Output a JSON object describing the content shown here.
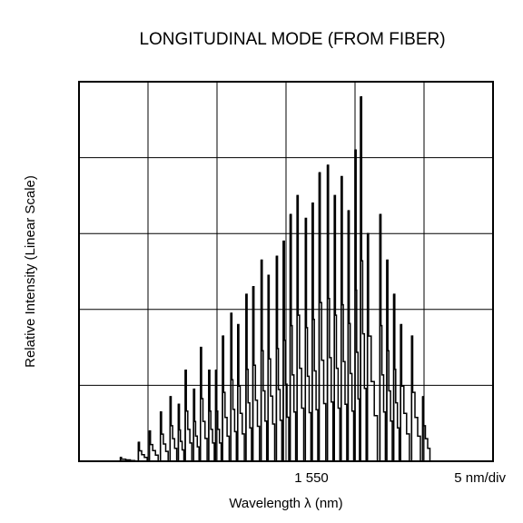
{
  "chart_data": {
    "type": "line",
    "title": "LONGITUDINAL MODE (FROM FIBER)",
    "xlabel": "Wavelength  λ (nm)",
    "ylabel": "Relative Intensity (Linear Scale)",
    "x_tick_label": "1 550",
    "x_tick_value": 1550,
    "scale_label": "5 nm/div",
    "x_per_div": 5,
    "xlim": [
      1532.5,
      1562.5
    ],
    "ylim": [
      0,
      1
    ],
    "grid": true,
    "x_divisions": 6,
    "y_divisions": 5,
    "peaks": [
      {
        "x": 1535.5,
        "y": 0.01
      },
      {
        "x": 1536.8,
        "y": 0.05
      },
      {
        "x": 1537.6,
        "y": 0.08
      },
      {
        "x": 1538.4,
        "y": 0.13
      },
      {
        "x": 1539.1,
        "y": 0.17
      },
      {
        "x": 1539.7,
        "y": 0.15
      },
      {
        "x": 1540.2,
        "y": 0.24
      },
      {
        "x": 1540.8,
        "y": 0.19
      },
      {
        "x": 1541.3,
        "y": 0.3
      },
      {
        "x": 1541.9,
        "y": 0.24
      },
      {
        "x": 1542.4,
        "y": 0.24
      },
      {
        "x": 1542.9,
        "y": 0.33
      },
      {
        "x": 1543.5,
        "y": 0.39
      },
      {
        "x": 1544.0,
        "y": 0.36
      },
      {
        "x": 1544.6,
        "y": 0.44
      },
      {
        "x": 1545.1,
        "y": 0.46
      },
      {
        "x": 1545.7,
        "y": 0.53
      },
      {
        "x": 1546.2,
        "y": 0.49
      },
      {
        "x": 1546.8,
        "y": 0.54
      },
      {
        "x": 1547.3,
        "y": 0.58
      },
      {
        "x": 1547.8,
        "y": 0.65
      },
      {
        "x": 1548.3,
        "y": 0.7
      },
      {
        "x": 1548.9,
        "y": 0.64
      },
      {
        "x": 1549.4,
        "y": 0.68
      },
      {
        "x": 1549.9,
        "y": 0.76
      },
      {
        "x": 1550.5,
        "y": 0.78
      },
      {
        "x": 1551.0,
        "y": 0.7
      },
      {
        "x": 1551.5,
        "y": 0.75
      },
      {
        "x": 1552.0,
        "y": 0.66
      },
      {
        "x": 1552.5,
        "y": 0.82
      },
      {
        "x": 1552.9,
        "y": 0.96
      },
      {
        "x": 1553.4,
        "y": 0.6
      },
      {
        "x": 1554.3,
        "y": 0.65
      },
      {
        "x": 1554.8,
        "y": 0.53
      },
      {
        "x": 1555.3,
        "y": 0.44
      },
      {
        "x": 1555.8,
        "y": 0.36
      },
      {
        "x": 1556.6,
        "y": 0.33
      },
      {
        "x": 1557.4,
        "y": 0.17
      }
    ]
  }
}
